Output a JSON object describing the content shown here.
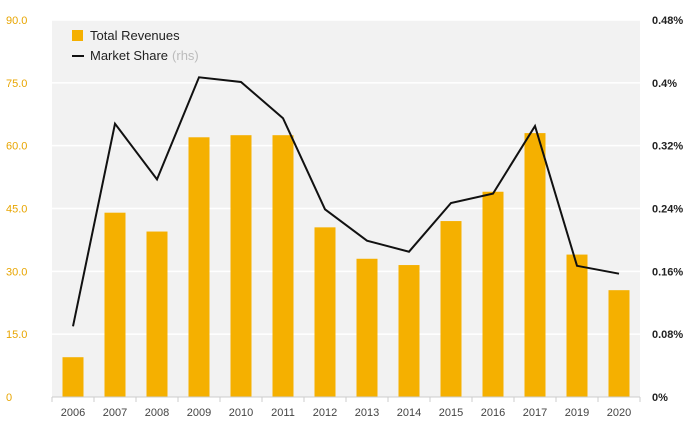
{
  "chart_data": {
    "type": "bar",
    "categories": [
      "2006",
      "2007",
      "2008",
      "2009",
      "2010",
      "2011",
      "2012",
      "2013",
      "2014",
      "2015",
      "2016",
      "2017",
      "2019",
      "2020"
    ],
    "series": [
      {
        "name": "Total Revenues",
        "type": "bar",
        "axis": "left",
        "color": "#f5b000",
        "values": [
          9.5,
          44.0,
          39.5,
          62.0,
          62.5,
          62.5,
          40.5,
          33.0,
          31.5,
          42.0,
          49.0,
          63.0,
          34.0,
          25.5
        ]
      },
      {
        "name": "Market Share",
        "name_note": "(rhs)",
        "type": "line",
        "axis": "right",
        "color": "#111111",
        "values": [
          0.09,
          0.348,
          0.277,
          0.407,
          0.401,
          0.355,
          0.239,
          0.199,
          0.185,
          0.247,
          0.259,
          0.345,
          0.167,
          0.157
        ]
      }
    ],
    "ylim": [
      0,
      90
    ],
    "y_ticks": [
      "0",
      "15.0",
      "30.0",
      "45.0",
      "60.0",
      "75.0",
      "90.0"
    ],
    "y2lim": [
      0,
      0.48
    ],
    "y2_ticks": [
      "0%",
      "0.08%",
      "0.16%",
      "0.24%",
      "0.32%",
      "0.4%",
      "0.48%"
    ],
    "grid": "horizontal",
    "legend_position": "top-left",
    "background": "#f2f2f2",
    "grid_color": "#ffffff"
  }
}
